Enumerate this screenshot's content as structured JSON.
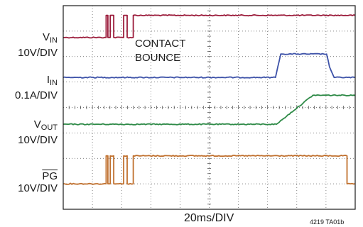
{
  "chart_data": {
    "type": "line",
    "title": "",
    "xlabel": "20ms/DIV",
    "figure_id": "4219 TA01b",
    "grid": true,
    "grid_divisions": {
      "x": 10,
      "y": 8
    },
    "x_unit": "div",
    "y_unit": "div",
    "annotation": [
      "CONTACT",
      "BOUNCE"
    ],
    "series": [
      {
        "name_main": "V",
        "name_sub": "IN",
        "scale": "10V/DIV",
        "overline": false,
        "color": "#9b1b3a",
        "x": [
          0,
          1.47,
          1.47,
          1.53,
          1.53,
          1.61,
          1.61,
          1.73,
          1.73,
          2.07,
          2.07,
          2.19,
          2.19,
          2.4,
          2.4,
          10
        ],
        "y": [
          6.75,
          6.75,
          7.62,
          7.62,
          6.75,
          6.75,
          7.62,
          7.62,
          6.75,
          6.75,
          7.62,
          7.62,
          6.75,
          6.75,
          7.62,
          7.62
        ]
      },
      {
        "name_main": "I",
        "name_sub": "IN",
        "scale": "0.1A/DIV",
        "overline": false,
        "color": "#3d52a8",
        "x": [
          0,
          7.27,
          7.35,
          7.45,
          9.02,
          9.12,
          9.28,
          10
        ],
        "y": [
          5.18,
          5.18,
          5.6,
          6.1,
          6.1,
          5.6,
          5.18,
          5.18
        ]
      },
      {
        "name_main": "V",
        "name_sub": "OUT",
        "scale": "10V/DIV",
        "overline": false,
        "color": "#2e8a47",
        "x": [
          0,
          7.3,
          8.55,
          10
        ],
        "y": [
          3.34,
          3.34,
          4.48,
          4.48
        ]
      },
      {
        "name_main": "PG",
        "name_sub": "",
        "scale": "10V/DIV",
        "overline": true,
        "color": "#c0702e",
        "x": [
          0,
          1.47,
          1.47,
          1.53,
          1.53,
          1.61,
          1.61,
          1.73,
          1.73,
          2.07,
          2.07,
          2.19,
          2.19,
          2.4,
          2.4,
          9.72,
          9.72,
          10
        ],
        "y": [
          1.0,
          1.0,
          2.1,
          2.1,
          1.0,
          1.0,
          2.1,
          2.1,
          1.0,
          1.0,
          2.1,
          2.1,
          1.0,
          1.0,
          2.1,
          2.1,
          1.0,
          1.0
        ]
      }
    ]
  }
}
